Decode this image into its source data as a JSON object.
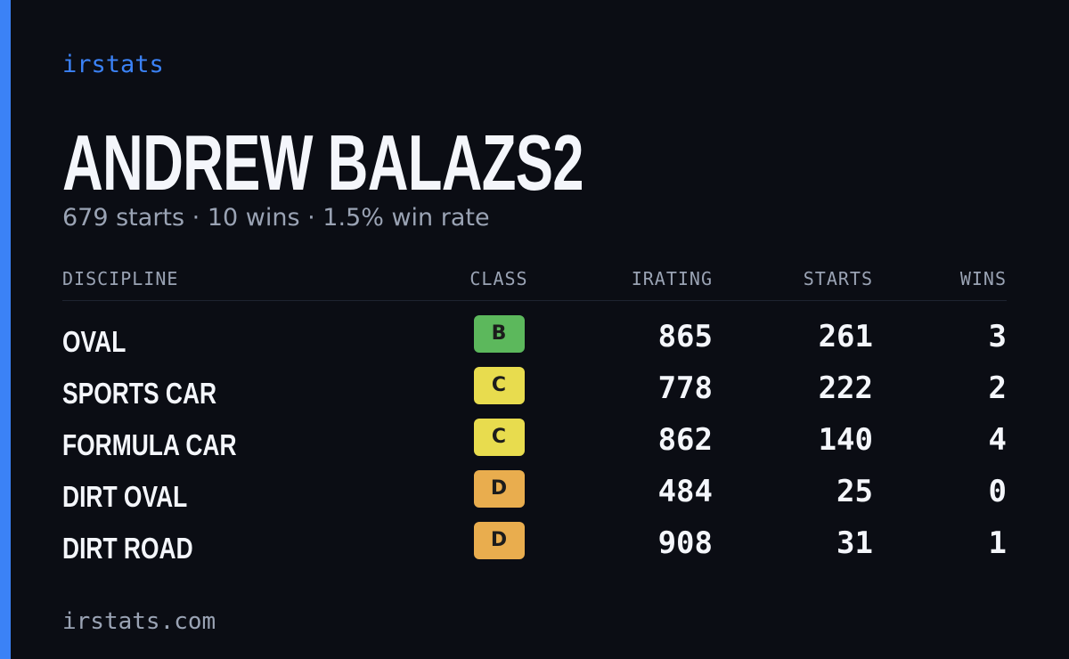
{
  "brand": "irstats",
  "profile": {
    "name": "ANDREW BALAZS2",
    "summary": "679 starts · 10 wins · 1.5% win rate"
  },
  "table": {
    "headers": [
      "DISCIPLINE",
      "CLASS",
      "IRATING",
      "STARTS",
      "WINS"
    ],
    "rows": [
      [
        "OVAL",
        "B",
        865,
        261,
        3
      ],
      [
        "SPORTS CAR",
        "C",
        778,
        222,
        2
      ],
      [
        "FORMULA CAR",
        "C",
        862,
        140,
        4
      ],
      [
        "DIRT OVAL",
        "D",
        484,
        25,
        0
      ],
      [
        "DIRT ROAD",
        "D",
        908,
        31,
        1
      ]
    ],
    "class_colors": {
      "B": "#5cb85c",
      "C": "#e8dc4e",
      "D": "#e9ad4e"
    }
  },
  "footer": "irstats.com"
}
